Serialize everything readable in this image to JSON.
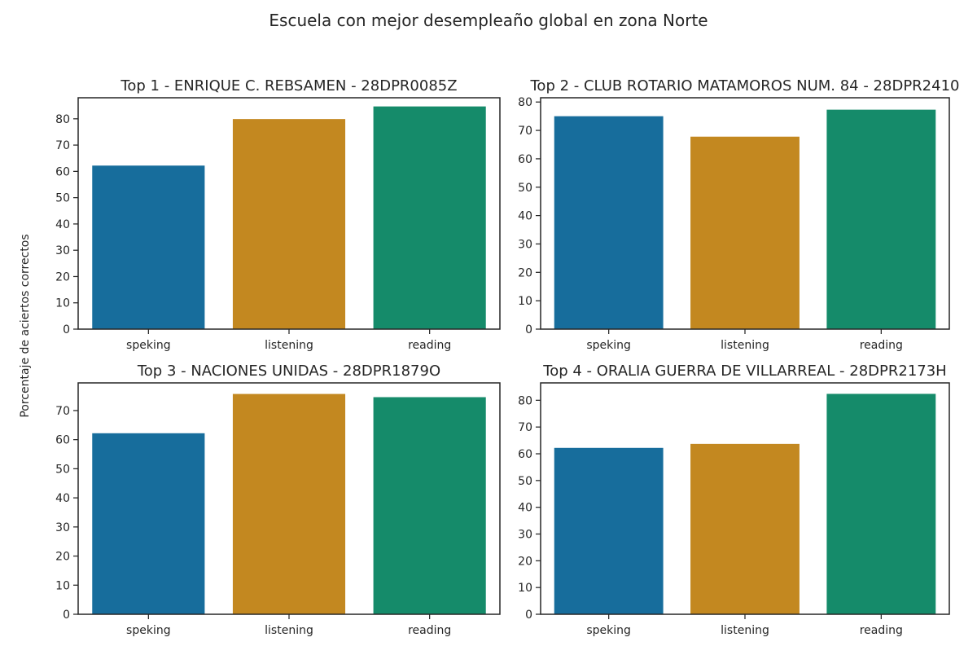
{
  "figure": {
    "suptitle": "Escuela con mejor desempleaño global en zona Norte",
    "ylabel": "Porcentaje de aciertos correctos"
  },
  "chart_data": [
    {
      "type": "bar",
      "title": "Top  1 - ENRIQUE C. REBSAMEN - 28DPR0085Z",
      "categories": [
        "speking",
        "listening",
        "reading"
      ],
      "values": [
        62.2,
        79.9,
        84.7
      ],
      "ylim": [
        0,
        88
      ],
      "yticks": [
        0,
        10,
        20,
        30,
        40,
        50,
        60,
        70,
        80
      ],
      "colors": [
        "#176d9c",
        "#c38820",
        "#158b6a"
      ],
      "grid": false
    },
    {
      "type": "bar",
      "title": "Top  2 - CLUB ROTARIO MATAMOROS NUM. 84 - 28DPR2410",
      "categories": [
        "speking",
        "listening",
        "reading"
      ],
      "values": [
        75.0,
        67.8,
        77.3
      ],
      "ylim": [
        0,
        81.5
      ],
      "yticks": [
        0,
        10,
        20,
        30,
        40,
        50,
        60,
        70,
        80
      ],
      "colors": [
        "#176d9c",
        "#c38820",
        "#158b6a"
      ],
      "grid": false
    },
    {
      "type": "bar",
      "title": "Top  3 - NACIONES UNIDAS - 28DPR1879O",
      "categories": [
        "speking",
        "listening",
        "reading"
      ],
      "values": [
        62.2,
        75.7,
        74.6
      ],
      "ylim": [
        0,
        79.5
      ],
      "yticks": [
        0,
        10,
        20,
        30,
        40,
        50,
        60,
        70
      ],
      "colors": [
        "#176d9c",
        "#c38820",
        "#158b6a"
      ],
      "grid": false
    },
    {
      "type": "bar",
      "title": "Top  4 - ORALIA GUERRA DE VILLARREAL - 28DPR2173H",
      "categories": [
        "speking",
        "listening",
        "reading"
      ],
      "values": [
        62.2,
        63.7,
        82.4
      ],
      "ylim": [
        0,
        86.5
      ],
      "yticks": [
        0,
        10,
        20,
        30,
        40,
        50,
        60,
        70,
        80
      ],
      "colors": [
        "#176d9c",
        "#c38820",
        "#158b6a"
      ],
      "grid": false
    }
  ]
}
